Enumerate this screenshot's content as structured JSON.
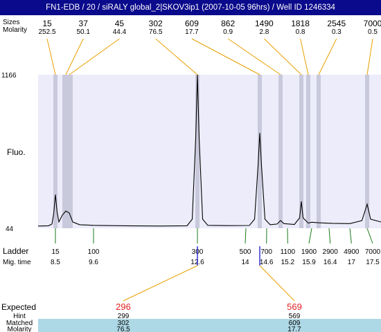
{
  "window": {
    "title": "FN1-EDB / 20 / siRALY global_2|SKOV3ip1 (2007-10-05 96hrs) / Well ID 1246334"
  },
  "labels": {
    "sizes": "Sizes",
    "molarity": "Molarity",
    "fluo": "Fluo.",
    "ladder": "Ladder",
    "mig_time": "Mig. time",
    "expected": "Expected",
    "hint": "Hint",
    "matched": "Matched",
    "molarity_bottom": "Molarity"
  },
  "chart_data": {
    "type": "line",
    "title": "",
    "xlabel": "",
    "ylabel": "Fluo.",
    "y_axis_ticks": [
      "1166",
      "44"
    ],
    "ylim": [
      44,
      1166
    ],
    "xlim": [
      8,
      17.9
    ],
    "peaks": [
      {
        "size": "15",
        "molarity": "252.5",
        "time": 8.5
      },
      {
        "size": "37",
        "molarity": "50.1",
        "time": 8.8
      },
      {
        "size": "45",
        "molarity": "44.4",
        "time": 8.9
      },
      {
        "size": "302",
        "molarity": "76.5",
        "time": 12.6
      },
      {
        "size": "609",
        "molarity": "17.7",
        "time": 14.4
      },
      {
        "size": "862",
        "molarity": "0.9",
        "time": 15.0
      },
      {
        "size": "1490",
        "molarity": "2.8",
        "time": 15.6
      },
      {
        "size": "1818",
        "molarity": "0.8",
        "time": 15.8
      },
      {
        "size": "2545",
        "molarity": "0.3",
        "time": 16.1
      },
      {
        "size": "7000",
        "molarity": "0.5",
        "time": 17.5
      }
    ],
    "trace": [
      [
        8.0,
        60
      ],
      [
        8.3,
        62
      ],
      [
        8.4,
        75
      ],
      [
        8.45,
        150
      ],
      [
        8.5,
        290
      ],
      [
        8.55,
        160
      ],
      [
        8.6,
        90
      ],
      [
        8.7,
        140
      ],
      [
        8.8,
        170
      ],
      [
        8.9,
        155
      ],
      [
        9.0,
        90
      ],
      [
        9.2,
        70
      ],
      [
        9.6,
        65
      ],
      [
        10.5,
        62
      ],
      [
        11.5,
        60
      ],
      [
        12.3,
        62
      ],
      [
        12.45,
        110
      ],
      [
        12.55,
        700
      ],
      [
        12.6,
        1166
      ],
      [
        12.65,
        700
      ],
      [
        12.75,
        110
      ],
      [
        12.9,
        65
      ],
      [
        13.5,
        63
      ],
      [
        14.1,
        64
      ],
      [
        14.25,
        110
      ],
      [
        14.35,
        500
      ],
      [
        14.4,
        740
      ],
      [
        14.45,
        500
      ],
      [
        14.55,
        110
      ],
      [
        14.7,
        70
      ],
      [
        14.9,
        75
      ],
      [
        15.0,
        100
      ],
      [
        15.1,
        78
      ],
      [
        15.4,
        72
      ],
      [
        15.55,
        120
      ],
      [
        15.6,
        240
      ],
      [
        15.65,
        120
      ],
      [
        15.8,
        82
      ],
      [
        15.9,
        88
      ],
      [
        16.1,
        84
      ],
      [
        16.5,
        80
      ],
      [
        17.0,
        78
      ],
      [
        17.35,
        100
      ],
      [
        17.5,
        220
      ],
      [
        17.6,
        110
      ],
      [
        17.9,
        90
      ]
    ],
    "ladder": [
      {
        "size": "15",
        "time": "8.5"
      },
      {
        "size": "100",
        "time": "9.6"
      },
      {
        "size": "300",
        "time": "12.6"
      },
      {
        "size": "500",
        "time": "14"
      },
      {
        "size": "700",
        "time": "14.6"
      },
      {
        "size": "1100",
        "time": "15.2"
      },
      {
        "size": "1900",
        "time": "15.9"
      },
      {
        "size": "2900",
        "time": "16.4"
      },
      {
        "size": "4900",
        "time": "17"
      },
      {
        "size": "7000",
        "time": "17.5"
      }
    ],
    "expected": [
      {
        "expected": "296",
        "hint": "299",
        "matched": "302",
        "molarity": "76.5",
        "time": 12.6
      },
      {
        "expected": "569",
        "hint": "569",
        "matched": "609",
        "molarity": "17.7",
        "time": 14.4
      }
    ],
    "colors": {
      "plot_bg": "#ececfb",
      "peak_band": "#c9c9dc",
      "callout_line": "#e8a000",
      "ladder_tick": "#1a7a1a",
      "expected_text": "#e02020",
      "table_bg": "#add8e6",
      "marker_blue": "#0000cc",
      "trace": "#000000"
    }
  }
}
